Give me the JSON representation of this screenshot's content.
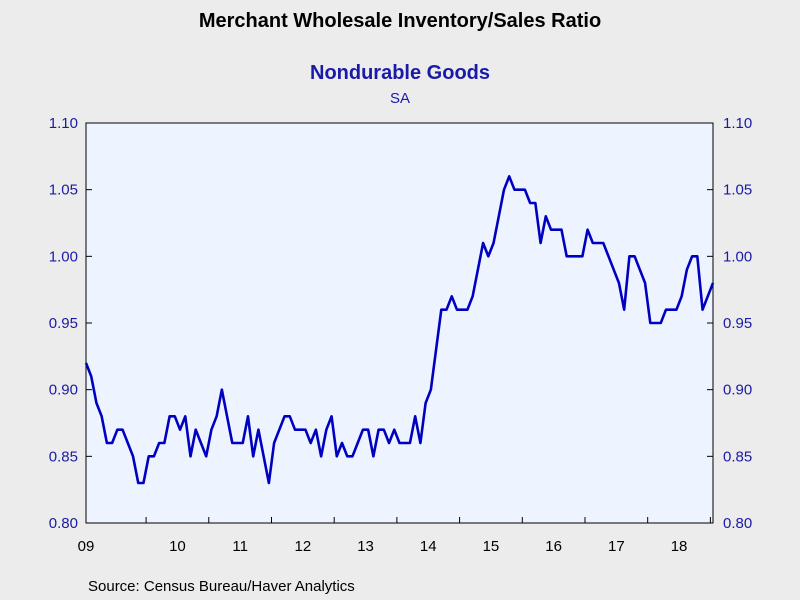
{
  "chart_data": {
    "type": "line",
    "title": "Merchant Wholesale Inventory/Sales Ratio",
    "subtitle": "Nondurable Goods",
    "subsubtitle": "SA",
    "source": "Source:  Census Bureau/Haver Analytics",
    "ylim": [
      0.8,
      1.1
    ],
    "yticks": [
      "0.80",
      "0.85",
      "0.90",
      "0.95",
      "1.00",
      "1.05",
      "1.10"
    ],
    "xtick_labels": [
      "09",
      "10",
      "11",
      "12",
      "13",
      "14",
      "15",
      "16",
      "17",
      "18"
    ],
    "grid": false,
    "series": [
      {
        "color": "#0000c0",
        "start": "2009-01",
        "frequency": "monthly",
        "values": [
          0.92,
          0.91,
          0.89,
          0.88,
          0.86,
          0.86,
          0.87,
          0.87,
          0.86,
          0.85,
          0.83,
          0.83,
          0.85,
          0.85,
          0.86,
          0.86,
          0.88,
          0.88,
          0.87,
          0.88,
          0.85,
          0.87,
          0.86,
          0.85,
          0.87,
          0.88,
          0.9,
          0.88,
          0.86,
          0.86,
          0.86,
          0.88,
          0.85,
          0.87,
          0.85,
          0.83,
          0.86,
          0.87,
          0.88,
          0.88,
          0.87,
          0.87,
          0.87,
          0.86,
          0.87,
          0.85,
          0.87,
          0.88,
          0.85,
          0.86,
          0.85,
          0.85,
          0.86,
          0.87,
          0.87,
          0.85,
          0.87,
          0.87,
          0.86,
          0.87,
          0.86,
          0.86,
          0.86,
          0.88,
          0.86,
          0.89,
          0.9,
          0.93,
          0.96,
          0.96,
          0.97,
          0.96,
          0.96,
          0.96,
          0.97,
          0.99,
          1.01,
          1.0,
          1.01,
          1.03,
          1.05,
          1.06,
          1.05,
          1.05,
          1.05,
          1.04,
          1.04,
          1.01,
          1.03,
          1.02,
          1.02,
          1.02,
          1.0,
          1.0,
          1.0,
          1.0,
          1.02,
          1.01,
          1.01,
          1.01,
          1.0,
          0.99,
          0.98,
          0.96,
          1.0,
          1.0,
          0.99,
          0.98,
          0.95,
          0.95,
          0.95,
          0.96,
          0.96,
          0.96,
          0.97,
          0.99,
          1.0,
          1.0,
          0.96,
          0.97,
          0.98
        ]
      }
    ]
  }
}
